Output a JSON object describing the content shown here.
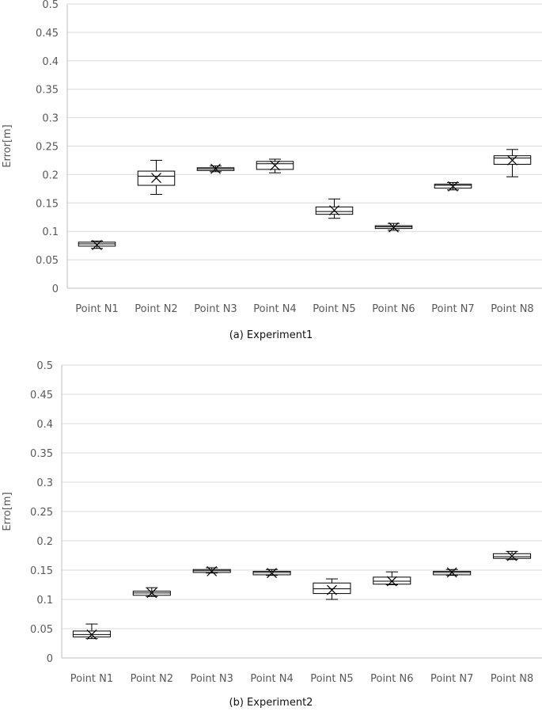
{
  "chart_data": [
    {
      "type": "box",
      "caption": "(a) Experiment1",
      "ylabel": "Error[m]",
      "xlabel": "",
      "ylim": [
        0,
        0.5
      ],
      "yticks": [
        "0",
        "0.05",
        "0.1",
        "0.15",
        "0.2",
        "0.25",
        "0.3",
        "0.35",
        "0.4",
        "0.45",
        "0.5"
      ],
      "grid": true,
      "categories": [
        "Point N1",
        "Point N2",
        "Point N3",
        "Point N4",
        "Point N5",
        "Point N6",
        "Point N7",
        "Point N8"
      ],
      "boxes": [
        {
          "min": 0.07,
          "q1": 0.074,
          "median": 0.078,
          "q3": 0.081,
          "max": 0.083,
          "mean": 0.076
        },
        {
          "min": 0.165,
          "q1": 0.181,
          "median": 0.197,
          "q3": 0.206,
          "max": 0.225,
          "mean": 0.194
        },
        {
          "min": 0.205,
          "q1": 0.207,
          "median": 0.21,
          "q3": 0.212,
          "max": 0.215,
          "mean": 0.21
        },
        {
          "min": 0.203,
          "q1": 0.209,
          "median": 0.219,
          "q3": 0.223,
          "max": 0.227,
          "mean": 0.216
        },
        {
          "min": 0.123,
          "q1": 0.13,
          "median": 0.135,
          "q3": 0.143,
          "max": 0.157,
          "mean": 0.137
        },
        {
          "min": 0.102,
          "q1": 0.105,
          "median": 0.108,
          "q3": 0.11,
          "max": 0.114,
          "mean": 0.107
        },
        {
          "min": 0.173,
          "q1": 0.176,
          "median": 0.181,
          "q3": 0.183,
          "max": 0.186,
          "mean": 0.179
        },
        {
          "min": 0.196,
          "q1": 0.218,
          "median": 0.229,
          "q3": 0.233,
          "max": 0.244,
          "mean": 0.225
        }
      ]
    },
    {
      "type": "box",
      "caption": "(b) Experiment2",
      "ylabel": "Erro[m]",
      "xlabel": "",
      "ylim": [
        0,
        0.5
      ],
      "yticks": [
        "0",
        "0.05",
        "0.1",
        "0.15",
        "0.2",
        "0.25",
        "0.3",
        "0.35",
        "0.4",
        "0.45",
        "0.5"
      ],
      "grid": true,
      "categories": [
        "Point N1",
        "Point N2",
        "Point N3",
        "Point N4",
        "Point N5",
        "Point N6",
        "Point N7",
        "Point N8"
      ],
      "boxes": [
        {
          "min": 0.033,
          "q1": 0.036,
          "median": 0.04,
          "q3": 0.046,
          "max": 0.058,
          "mean": 0.04
        },
        {
          "min": 0.105,
          "q1": 0.107,
          "median": 0.111,
          "q3": 0.114,
          "max": 0.12,
          "mean": 0.111
        },
        {
          "min": 0.145,
          "q1": 0.146,
          "median": 0.149,
          "q3": 0.151,
          "max": 0.154,
          "mean": 0.148
        },
        {
          "min": 0.141,
          "q1": 0.142,
          "median": 0.146,
          "q3": 0.148,
          "max": 0.151,
          "mean": 0.145
        },
        {
          "min": 0.1,
          "q1": 0.11,
          "median": 0.118,
          "q3": 0.128,
          "max": 0.135,
          "mean": 0.116
        },
        {
          "min": 0.125,
          "q1": 0.126,
          "median": 0.131,
          "q3": 0.138,
          "max": 0.147,
          "mean": 0.131
        },
        {
          "min": 0.141,
          "q1": 0.142,
          "median": 0.146,
          "q3": 0.148,
          "max": 0.151,
          "mean": 0.146
        },
        {
          "min": 0.168,
          "q1": 0.17,
          "median": 0.173,
          "q3": 0.178,
          "max": 0.182,
          "mean": 0.174
        }
      ]
    }
  ]
}
